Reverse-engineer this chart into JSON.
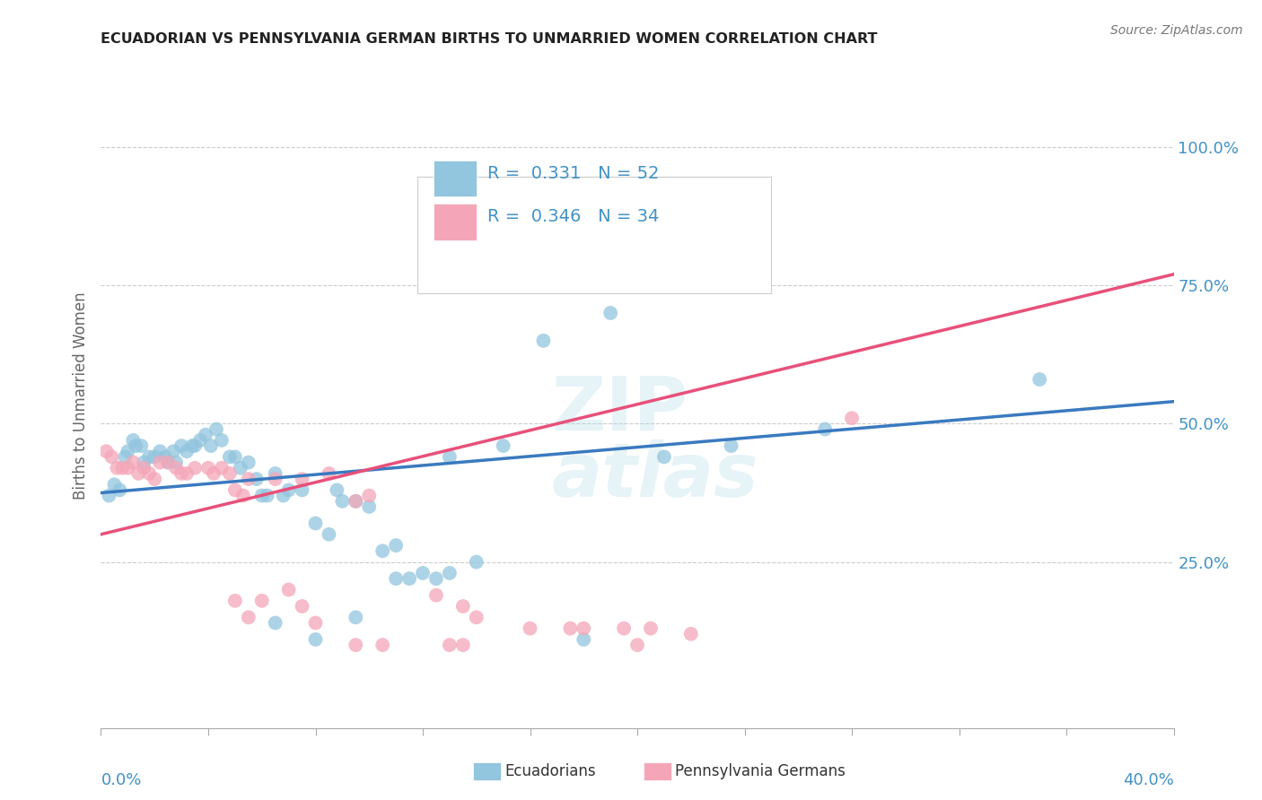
{
  "title": "ECUADORIAN VS PENNSYLVANIA GERMAN BIRTHS TO UNMARRIED WOMEN CORRELATION CHART",
  "source": "Source: ZipAtlas.com",
  "ylabel": "Births to Unmarried Women",
  "ytick_labels": [
    "25.0%",
    "50.0%",
    "75.0%",
    "100.0%"
  ],
  "ytick_values": [
    25,
    50,
    75,
    100
  ],
  "xlim": [
    0.0,
    40.0
  ],
  "ylim": [
    -5,
    115
  ],
  "legend1_R": "0.331",
  "legend1_N": "52",
  "legend2_R": "0.346",
  "legend2_N": "34",
  "legend1_label": "Ecuadorians",
  "legend2_label": "Pennsylvania Germans",
  "blue_color": "#92c5de",
  "pink_color": "#f4a6b8",
  "line_blue": "#3a7abf",
  "line_pink": "#e8507a",
  "title_color": "#222222",
  "axis_label_color": "#4292c6",
  "blue_scatter": [
    [
      0.3,
      37
    ],
    [
      0.5,
      39
    ],
    [
      0.7,
      38
    ],
    [
      0.9,
      44
    ],
    [
      1.0,
      45
    ],
    [
      1.2,
      47
    ],
    [
      1.3,
      46
    ],
    [
      1.5,
      46
    ],
    [
      1.6,
      43
    ],
    [
      1.8,
      44
    ],
    [
      2.0,
      44
    ],
    [
      2.2,
      45
    ],
    [
      2.4,
      44
    ],
    [
      2.5,
      43
    ],
    [
      2.7,
      45
    ],
    [
      2.8,
      43
    ],
    [
      3.0,
      46
    ],
    [
      3.2,
      45
    ],
    [
      3.4,
      46
    ],
    [
      3.5,
      46
    ],
    [
      3.7,
      47
    ],
    [
      3.9,
      48
    ],
    [
      4.1,
      46
    ],
    [
      4.3,
      49
    ],
    [
      4.5,
      47
    ],
    [
      4.8,
      44
    ],
    [
      5.0,
      44
    ],
    [
      5.2,
      42
    ],
    [
      5.5,
      43
    ],
    [
      5.8,
      40
    ],
    [
      6.0,
      37
    ],
    [
      6.2,
      37
    ],
    [
      6.5,
      41
    ],
    [
      6.8,
      37
    ],
    [
      7.0,
      38
    ],
    [
      7.5,
      38
    ],
    [
      8.0,
      32
    ],
    [
      8.5,
      30
    ],
    [
      8.8,
      38
    ],
    [
      9.0,
      36
    ],
    [
      9.5,
      36
    ],
    [
      10.0,
      35
    ],
    [
      10.5,
      27
    ],
    [
      11.0,
      28
    ],
    [
      13.0,
      44
    ],
    [
      15.0,
      46
    ],
    [
      16.5,
      65
    ],
    [
      19.0,
      70
    ],
    [
      21.0,
      44
    ],
    [
      23.5,
      46
    ],
    [
      27.0,
      49
    ],
    [
      35.0,
      58
    ]
  ],
  "pink_scatter": [
    [
      0.2,
      45
    ],
    [
      0.4,
      44
    ],
    [
      0.6,
      42
    ],
    [
      0.8,
      42
    ],
    [
      1.0,
      42
    ],
    [
      1.2,
      43
    ],
    [
      1.4,
      41
    ],
    [
      1.6,
      42
    ],
    [
      1.8,
      41
    ],
    [
      2.0,
      40
    ],
    [
      2.2,
      43
    ],
    [
      2.5,
      43
    ],
    [
      2.8,
      42
    ],
    [
      3.0,
      41
    ],
    [
      3.2,
      41
    ],
    [
      3.5,
      42
    ],
    [
      4.0,
      42
    ],
    [
      4.2,
      41
    ],
    [
      4.5,
      42
    ],
    [
      4.8,
      41
    ],
    [
      5.0,
      38
    ],
    [
      5.3,
      37
    ],
    [
      5.5,
      40
    ],
    [
      6.5,
      40
    ],
    [
      7.5,
      40
    ],
    [
      8.5,
      41
    ],
    [
      9.5,
      36
    ],
    [
      10.0,
      37
    ],
    [
      12.5,
      19
    ],
    [
      13.5,
      17
    ],
    [
      14.0,
      15
    ],
    [
      16.0,
      13
    ],
    [
      17.5,
      13
    ],
    [
      19.5,
      13
    ],
    [
      20.5,
      13
    ],
    [
      22.0,
      12
    ],
    [
      28.0,
      51
    ]
  ],
  "pink_scatter_low": [
    [
      5.0,
      18
    ],
    [
      5.5,
      15
    ],
    [
      6.0,
      18
    ],
    [
      7.0,
      20
    ],
    [
      7.5,
      17
    ],
    [
      8.0,
      14
    ],
    [
      9.5,
      10
    ],
    [
      10.5,
      10
    ],
    [
      13.0,
      10
    ],
    [
      13.5,
      10
    ],
    [
      18.0,
      13
    ],
    [
      20.0,
      10
    ]
  ],
  "blue_scatter_low": [
    [
      6.5,
      14
    ],
    [
      8.0,
      11
    ],
    [
      9.5,
      15
    ],
    [
      11.0,
      22
    ],
    [
      11.5,
      22
    ],
    [
      12.0,
      23
    ],
    [
      12.5,
      22
    ],
    [
      13.0,
      23
    ],
    [
      14.0,
      25
    ],
    [
      18.0,
      11
    ]
  ],
  "blue_line_x": [
    0.0,
    40.0
  ],
  "blue_line_y": [
    37.5,
    54.0
  ],
  "pink_line_x": [
    0.0,
    40.0
  ],
  "pink_line_y": [
    30.0,
    77.0
  ],
  "watermark_top": "ZIP",
  "watermark_bot": "atlas"
}
